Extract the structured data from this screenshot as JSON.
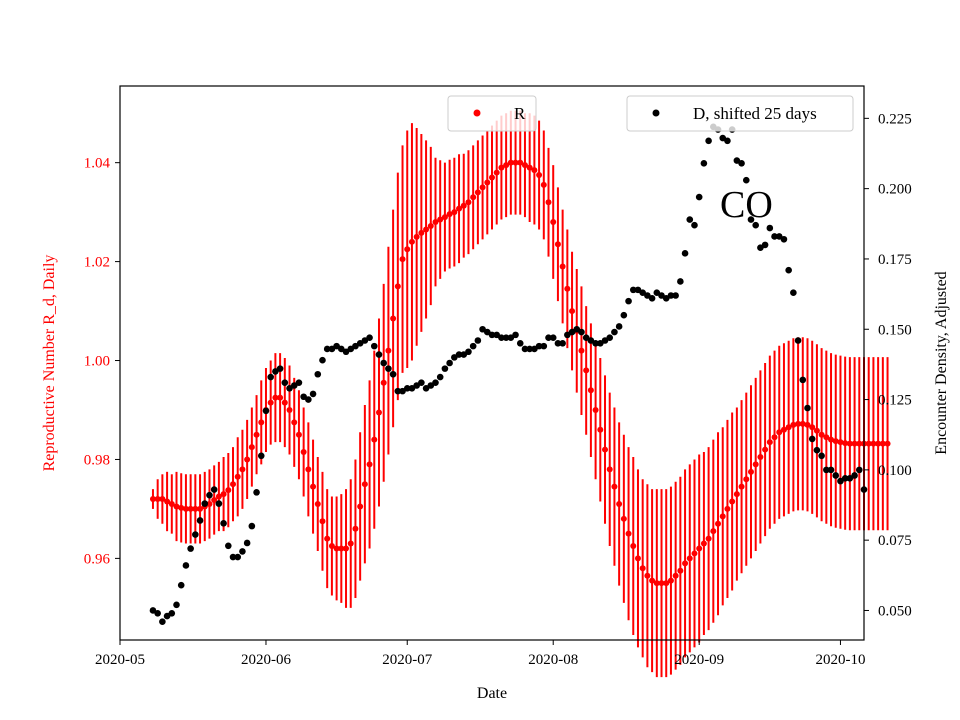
{
  "chart_data": {
    "type": "scatter",
    "annotation": "CO",
    "xlabel": "Date",
    "ylabel_left": "Reproductive Number R_d, Daily",
    "ylabel_right": "Encounter Density, Adjusted",
    "x_ticks": [
      "2020-05",
      "2020-06",
      "2020-07",
      "2020-08",
      "2020-09",
      "2020-10"
    ],
    "xlim": [
      "2020-05-01",
      "2020-10-06"
    ],
    "ylim_left": [
      0.9435,
      1.0555
    ],
    "ylim_right": [
      0.0395,
      0.2365
    ],
    "yticks_left": [
      "0.96",
      "0.98",
      "1.00",
      "1.02",
      "1.04"
    ],
    "yticks_right": [
      "0.050",
      "0.075",
      "0.100",
      "0.125",
      "0.150",
      "0.175",
      "0.200",
      "0.225"
    ],
    "grid": false,
    "colors": {
      "R": "#ff0000",
      "D": "#000000",
      "left_axis_text": "#ff0000"
    },
    "legends": [
      {
        "position": "top-center",
        "label": "R",
        "color": "#ff0000"
      },
      {
        "position": "top-right",
        "label": "D, shifted 25 days",
        "color": "#000000"
      }
    ],
    "series": [
      {
        "name": "R",
        "axis": "left",
        "error_bars": true,
        "start_date": "2020-05-08",
        "step_days": 1,
        "values": [
          0.972,
          0.972,
          0.972,
          0.9715,
          0.971,
          0.9705,
          0.9702,
          0.97,
          0.97,
          0.97,
          0.97,
          0.9705,
          0.971,
          0.9718,
          0.9725,
          0.973,
          0.9738,
          0.975,
          0.9765,
          0.978,
          0.98,
          0.9825,
          0.985,
          0.9875,
          0.99,
          0.9915,
          0.9925,
          0.9925,
          0.9915,
          0.99,
          0.9875,
          0.985,
          0.9815,
          0.978,
          0.9745,
          0.971,
          0.9675,
          0.964,
          0.9625,
          0.962,
          0.962,
          0.962,
          0.963,
          0.966,
          0.9705,
          0.975,
          0.979,
          0.984,
          0.9895,
          0.9955,
          1.002,
          1.0085,
          1.015,
          1.0205,
          1.0225,
          1.024,
          1.025,
          1.0258,
          1.0265,
          1.0272,
          1.028,
          1.0285,
          1.029,
          1.0296,
          1.03,
          1.0307,
          1.0313,
          1.032,
          1.033,
          1.034,
          1.035,
          1.036,
          1.037,
          1.038,
          1.039,
          1.0395,
          1.04,
          1.04,
          1.04,
          1.0395,
          1.039,
          1.0385,
          1.0375,
          1.0355,
          1.032,
          1.028,
          1.0235,
          1.019,
          1.0145,
          1.01,
          1.006,
          1.002,
          0.998,
          0.994,
          0.99,
          0.986,
          0.982,
          0.978,
          0.9745,
          0.971,
          0.968,
          0.965,
          0.9625,
          0.96,
          0.958,
          0.9565,
          0.9555,
          0.955,
          0.955,
          0.955,
          0.9555,
          0.9565,
          0.9575,
          0.959,
          0.96,
          0.961,
          0.962,
          0.963,
          0.964,
          0.9655,
          0.967,
          0.9685,
          0.97,
          0.9715,
          0.973,
          0.9745,
          0.976,
          0.9775,
          0.979,
          0.9805,
          0.982,
          0.9835,
          0.9845,
          0.9855,
          0.986,
          0.9865,
          0.987,
          0.9872,
          0.9872,
          0.987,
          0.9865,
          0.9858,
          0.985,
          0.9845,
          0.984,
          0.9837,
          0.9835,
          0.9833,
          0.9832,
          0.9832,
          0.9832,
          0.9832,
          0.9832,
          0.9832,
          0.9832,
          0.9832,
          0.9832
        ],
        "errors": [
          0.002,
          0.004,
          0.005,
          0.006,
          0.006,
          0.007,
          0.007,
          0.007,
          0.007,
          0.007,
          0.007,
          0.007,
          0.007,
          0.007,
          0.007,
          0.0075,
          0.0075,
          0.0075,
          0.008,
          0.008,
          0.008,
          0.008,
          0.008,
          0.0085,
          0.0085,
          0.0085,
          0.009,
          0.009,
          0.009,
          0.009,
          0.009,
          0.009,
          0.009,
          0.0095,
          0.0095,
          0.0095,
          0.01,
          0.01,
          0.01,
          0.0105,
          0.011,
          0.012,
          0.013,
          0.014,
          0.015,
          0.016,
          0.017,
          0.018,
          0.019,
          0.02,
          0.021,
          0.022,
          0.023,
          0.023,
          0.024,
          0.024,
          0.022,
          0.02,
          0.018,
          0.016,
          0.013,
          0.012,
          0.011,
          0.011,
          0.011,
          0.011,
          0.0105,
          0.0105,
          0.0105,
          0.0105,
          0.0105,
          0.0105,
          0.0105,
          0.0105,
          0.0105,
          0.0105,
          0.0105,
          0.0105,
          0.0105,
          0.0105,
          0.011,
          0.011,
          0.011,
          0.011,
          0.011,
          0.0115,
          0.0115,
          0.0115,
          0.012,
          0.012,
          0.0125,
          0.013,
          0.013,
          0.0135,
          0.014,
          0.0145,
          0.015,
          0.0155,
          0.016,
          0.0165,
          0.017,
          0.0175,
          0.018,
          0.018,
          0.018,
          0.0185,
          0.0185,
          0.019,
          0.019,
          0.019,
          0.019,
          0.019,
          0.019,
          0.019,
          0.019,
          0.019,
          0.019,
          0.0185,
          0.0185,
          0.0185,
          0.0185,
          0.018,
          0.018,
          0.018,
          0.0175,
          0.0175,
          0.0175,
          0.0175,
          0.0175,
          0.0175,
          0.0175,
          0.0175,
          0.0175,
          0.0175,
          0.0175,
          0.0175,
          0.0175,
          0.0175,
          0.0175,
          0.0175,
          0.0175,
          0.0175,
          0.0175,
          0.0175,
          0.0175,
          0.0175,
          0.0175,
          0.0175,
          0.0175,
          0.0175,
          0.0175,
          0.0175,
          0.0175,
          0.0175,
          0.0175,
          0.0175,
          0.0175
        ]
      },
      {
        "name": "D, shifted 25 days",
        "axis": "right",
        "points": [
          [
            "2020-05-08",
            0.05
          ],
          [
            "2020-05-09",
            0.049
          ],
          [
            "2020-05-10",
            0.046
          ],
          [
            "2020-05-11",
            0.048
          ],
          [
            "2020-05-12",
            0.049
          ],
          [
            "2020-05-13",
            0.052
          ],
          [
            "2020-05-14",
            0.059
          ],
          [
            "2020-05-15",
            0.066
          ],
          [
            "2020-05-16",
            0.072
          ],
          [
            "2020-05-17",
            0.077
          ],
          [
            "2020-05-18",
            0.082
          ],
          [
            "2020-05-19",
            0.088
          ],
          [
            "2020-05-20",
            0.091
          ],
          [
            "2020-05-21",
            0.093
          ],
          [
            "2020-05-22",
            0.088
          ],
          [
            "2020-05-23",
            0.081
          ],
          [
            "2020-05-24",
            0.073
          ],
          [
            "2020-05-25",
            0.069
          ],
          [
            "2020-05-26",
            0.069
          ],
          [
            "2020-05-27",
            0.071
          ],
          [
            "2020-05-28",
            0.074
          ],
          [
            "2020-05-29",
            0.08
          ],
          [
            "2020-05-30",
            0.092
          ],
          [
            "2020-05-31",
            0.105
          ],
          [
            "2020-06-01",
            0.121
          ],
          [
            "2020-06-02",
            0.133
          ],
          [
            "2020-06-03",
            0.135
          ],
          [
            "2020-06-04",
            0.136
          ],
          [
            "2020-06-05",
            0.131
          ],
          [
            "2020-06-06",
            0.129
          ],
          [
            "2020-06-07",
            0.13
          ],
          [
            "2020-06-08",
            0.131
          ],
          [
            "2020-06-09",
            0.126
          ],
          [
            "2020-06-10",
            0.125
          ],
          [
            "2020-06-11",
            0.127
          ],
          [
            "2020-06-12",
            0.134
          ],
          [
            "2020-06-13",
            0.139
          ],
          [
            "2020-06-14",
            0.143
          ],
          [
            "2020-06-15",
            0.143
          ],
          [
            "2020-06-16",
            0.144
          ],
          [
            "2020-06-17",
            0.143
          ],
          [
            "2020-06-18",
            0.142
          ],
          [
            "2020-06-19",
            0.143
          ],
          [
            "2020-06-20",
            0.144
          ],
          [
            "2020-06-21",
            0.145
          ],
          [
            "2020-06-22",
            0.146
          ],
          [
            "2020-06-23",
            0.147
          ],
          [
            "2020-06-24",
            0.144
          ],
          [
            "2020-06-25",
            0.141
          ],
          [
            "2020-06-26",
            0.138
          ],
          [
            "2020-06-27",
            0.136
          ],
          [
            "2020-06-28",
            0.134
          ],
          [
            "2020-06-29",
            0.128
          ],
          [
            "2020-06-30",
            0.128
          ],
          [
            "2020-07-01",
            0.129
          ],
          [
            "2020-07-02",
            0.129
          ],
          [
            "2020-07-03",
            0.13
          ],
          [
            "2020-07-04",
            0.131
          ],
          [
            "2020-07-05",
            0.129
          ],
          [
            "2020-07-06",
            0.13
          ],
          [
            "2020-07-07",
            0.131
          ],
          [
            "2020-07-08",
            0.133
          ],
          [
            "2020-07-09",
            0.136
          ],
          [
            "2020-07-10",
            0.138
          ],
          [
            "2020-07-11",
            0.14
          ],
          [
            "2020-07-12",
            0.141
          ],
          [
            "2020-07-13",
            0.141
          ],
          [
            "2020-07-14",
            0.142
          ],
          [
            "2020-07-15",
            0.144
          ],
          [
            "2020-07-16",
            0.146
          ],
          [
            "2020-07-17",
            0.15
          ],
          [
            "2020-07-18",
            0.149
          ],
          [
            "2020-07-19",
            0.148
          ],
          [
            "2020-07-20",
            0.148
          ],
          [
            "2020-07-21",
            0.147
          ],
          [
            "2020-07-22",
            0.147
          ],
          [
            "2020-07-23",
            0.147
          ],
          [
            "2020-07-24",
            0.148
          ],
          [
            "2020-07-25",
            0.145
          ],
          [
            "2020-07-26",
            0.143
          ],
          [
            "2020-07-27",
            0.143
          ],
          [
            "2020-07-28",
            0.143
          ],
          [
            "2020-07-29",
            0.144
          ],
          [
            "2020-07-30",
            0.144
          ],
          [
            "2020-07-31",
            0.147
          ],
          [
            "2020-08-01",
            0.147
          ],
          [
            "2020-08-02",
            0.145
          ],
          [
            "2020-08-03",
            0.145
          ],
          [
            "2020-08-04",
            0.148
          ],
          [
            "2020-08-05",
            0.149
          ],
          [
            "2020-08-06",
            0.15
          ],
          [
            "2020-08-07",
            0.149
          ],
          [
            "2020-08-08",
            0.147
          ],
          [
            "2020-08-09",
            0.146
          ],
          [
            "2020-08-10",
            0.145
          ],
          [
            "2020-08-11",
            0.145
          ],
          [
            "2020-08-12",
            0.146
          ],
          [
            "2020-08-13",
            0.147
          ],
          [
            "2020-08-14",
            0.149
          ],
          [
            "2020-08-15",
            0.151
          ],
          [
            "2020-08-16",
            0.155
          ],
          [
            "2020-08-17",
            0.16
          ],
          [
            "2020-08-18",
            0.164
          ],
          [
            "2020-08-19",
            0.164
          ],
          [
            "2020-08-20",
            0.163
          ],
          [
            "2020-08-21",
            0.162
          ],
          [
            "2020-08-22",
            0.161
          ],
          [
            "2020-08-23",
            0.163
          ],
          [
            "2020-08-24",
            0.162
          ],
          [
            "2020-08-25",
            0.161
          ],
          [
            "2020-08-26",
            0.162
          ],
          [
            "2020-08-27",
            0.162
          ],
          [
            "2020-08-28",
            0.167
          ],
          [
            "2020-08-29",
            0.177
          ],
          [
            "2020-08-30",
            0.189
          ],
          [
            "2020-08-31",
            0.187
          ],
          [
            "2020-09-01",
            0.197
          ],
          [
            "2020-09-02",
            0.209
          ],
          [
            "2020-09-03",
            0.217
          ],
          [
            "2020-09-04",
            0.222
          ],
          [
            "2020-09-05",
            0.221
          ],
          [
            "2020-09-06",
            0.218
          ],
          [
            "2020-09-07",
            0.217
          ],
          [
            "2020-09-08",
            0.221
          ],
          [
            "2020-09-09",
            0.21
          ],
          [
            "2020-09-10",
            0.209
          ],
          [
            "2020-09-11",
            0.203
          ],
          [
            "2020-09-12",
            0.189
          ],
          [
            "2020-09-13",
            0.187
          ],
          [
            "2020-09-14",
            0.179
          ],
          [
            "2020-09-15",
            0.18
          ],
          [
            "2020-09-16",
            0.186
          ],
          [
            "2020-09-17",
            0.183
          ],
          [
            "2020-09-18",
            0.183
          ],
          [
            "2020-09-19",
            0.182
          ],
          [
            "2020-09-20",
            0.171
          ],
          [
            "2020-09-21",
            0.163
          ],
          [
            "2020-09-22",
            0.146
          ],
          [
            "2020-09-23",
            0.132
          ],
          [
            "2020-09-24",
            0.122
          ],
          [
            "2020-09-25",
            0.111
          ],
          [
            "2020-09-26",
            0.107
          ],
          [
            "2020-09-27",
            0.105
          ],
          [
            "2020-09-28",
            0.1
          ],
          [
            "2020-09-29",
            0.1
          ],
          [
            "2020-09-30",
            0.098
          ],
          [
            "2020-10-01",
            0.096
          ],
          [
            "2020-10-02",
            0.097
          ],
          [
            "2020-10-03",
            0.097
          ],
          [
            "2020-10-04",
            0.098
          ],
          [
            "2020-10-05",
            0.1
          ],
          [
            "2020-10-06",
            0.093
          ]
        ]
      }
    ]
  }
}
